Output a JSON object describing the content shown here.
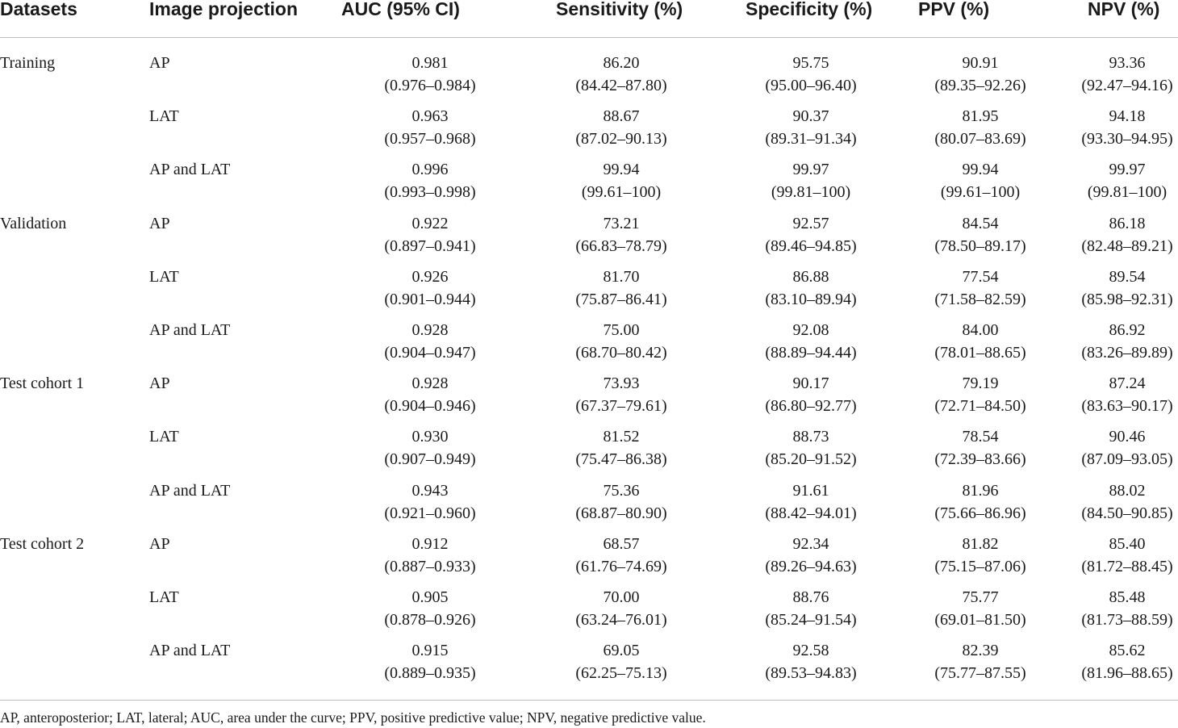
{
  "table": {
    "headers": [
      "Datasets",
      "Image projection",
      "AUC (95% CI)",
      "Sensitivity (%)",
      "Specificity (%)",
      "PPV (%)",
      "NPV (%)"
    ],
    "rows": [
      {
        "dataset": "Training",
        "projection": "AP",
        "auc": "0.981",
        "auc_ci": "(0.976–0.984)",
        "sens": "86.20",
        "sens_ci": "(84.42–87.80)",
        "spec": "95.75",
        "spec_ci": "(95.00–96.40)",
        "ppv": "90.91",
        "ppv_ci": "(89.35–92.26)",
        "npv": "93.36",
        "npv_ci": "(92.47–94.16)"
      },
      {
        "dataset": "",
        "projection": "LAT",
        "auc": "0.963",
        "auc_ci": "(0.957–0.968)",
        "sens": "88.67",
        "sens_ci": "(87.02–90.13)",
        "spec": "90.37",
        "spec_ci": "(89.31–91.34)",
        "ppv": "81.95",
        "ppv_ci": "(80.07–83.69)",
        "npv": "94.18",
        "npv_ci": "(93.30–94.95)"
      },
      {
        "dataset": "",
        "projection": "AP and LAT",
        "auc": "0.996",
        "auc_ci": "(0.993–0.998)",
        "sens": "99.94",
        "sens_ci": "(99.61–100)",
        "spec": "99.97",
        "spec_ci": "(99.81–100)",
        "ppv": "99.94",
        "ppv_ci": "(99.61–100)",
        "npv": "99.97",
        "npv_ci": "(99.81–100)"
      },
      {
        "dataset": "Validation",
        "projection": "AP",
        "auc": "0.922",
        "auc_ci": "(0.897–0.941)",
        "sens": "73.21",
        "sens_ci": "(66.83–78.79)",
        "spec": "92.57",
        "spec_ci": "(89.46–94.85)",
        "ppv": "84.54",
        "ppv_ci": "(78.50–89.17)",
        "npv": "86.18",
        "npv_ci": "(82.48–89.21)"
      },
      {
        "dataset": "",
        "projection": "LAT",
        "auc": "0.926",
        "auc_ci": "(0.901–0.944)",
        "sens": "81.70",
        "sens_ci": "(75.87–86.41)",
        "spec": "86.88",
        "spec_ci": "(83.10–89.94)",
        "ppv": "77.54",
        "ppv_ci": "(71.58–82.59)",
        "npv": "89.54",
        "npv_ci": "(85.98–92.31)"
      },
      {
        "dataset": "",
        "projection": "AP and LAT",
        "auc": "0.928",
        "auc_ci": "(0.904–0.947)",
        "sens": "75.00",
        "sens_ci": "(68.70–80.42)",
        "spec": "92.08",
        "spec_ci": "(88.89–94.44)",
        "ppv": "84.00",
        "ppv_ci": "(78.01–88.65)",
        "npv": "86.92",
        "npv_ci": "(83.26–89.89)"
      },
      {
        "dataset": "Test cohort 1",
        "projection": "AP",
        "auc": "0.928",
        "auc_ci": "(0.904–0.946)",
        "sens": "73.93",
        "sens_ci": "(67.37–79.61)",
        "spec": "90.17",
        "spec_ci": "(86.80–92.77)",
        "ppv": "79.19",
        "ppv_ci": "(72.71–84.50)",
        "npv": "87.24",
        "npv_ci": "(83.63–90.17)"
      },
      {
        "dataset": "",
        "projection": "LAT",
        "auc": "0.930",
        "auc_ci": "(0.907–0.949)",
        "sens": "81.52",
        "sens_ci": "(75.47–86.38)",
        "spec": "88.73",
        "spec_ci": "(85.20–91.52)",
        "ppv": "78.54",
        "ppv_ci": "(72.39–83.66)",
        "npv": "90.46",
        "npv_ci": "(87.09–93.05)"
      },
      {
        "dataset": "",
        "projection": "AP and LAT",
        "auc": "0.943",
        "auc_ci": "(0.921–0.960)",
        "sens": "75.36",
        "sens_ci": "(68.87–80.90)",
        "spec": "91.61",
        "spec_ci": "(88.42–94.01)",
        "ppv": "81.96",
        "ppv_ci": "(75.66–86.96)",
        "npv": "88.02",
        "npv_ci": "(84.50–90.85)"
      },
      {
        "dataset": "Test cohort 2",
        "projection": "AP",
        "auc": "0.912",
        "auc_ci": "(0.887–0.933)",
        "sens": "68.57",
        "sens_ci": "(61.76–74.69)",
        "spec": "92.34",
        "spec_ci": "(89.26–94.63)",
        "ppv": "81.82",
        "ppv_ci": "(75.15–87.06)",
        "npv": "85.40",
        "npv_ci": "(81.72–88.45)"
      },
      {
        "dataset": "",
        "projection": "LAT",
        "auc": "0.905",
        "auc_ci": "(0.878–0.926)",
        "sens": "70.00",
        "sens_ci": "(63.24–76.01)",
        "spec": "88.76",
        "spec_ci": "(85.24–91.54)",
        "ppv": "75.77",
        "ppv_ci": "(69.01–81.50)",
        "npv": "85.48",
        "npv_ci": "(81.73–88.59)"
      },
      {
        "dataset": "",
        "projection": "AP and LAT",
        "auc": "0.915",
        "auc_ci": "(0.889–0.935)",
        "sens": "69.05",
        "sens_ci": "(62.25–75.13)",
        "spec": "92.58",
        "spec_ci": "(89.53–94.83)",
        "ppv": "82.39",
        "ppv_ci": "(75.77–87.55)",
        "npv": "85.62",
        "npv_ci": "(81.96–88.65)"
      }
    ],
    "footnote": "AP, anteroposterior; LAT, lateral; AUC, area under the curve; PPV, positive predictive value; NPV, negative predictive value."
  }
}
